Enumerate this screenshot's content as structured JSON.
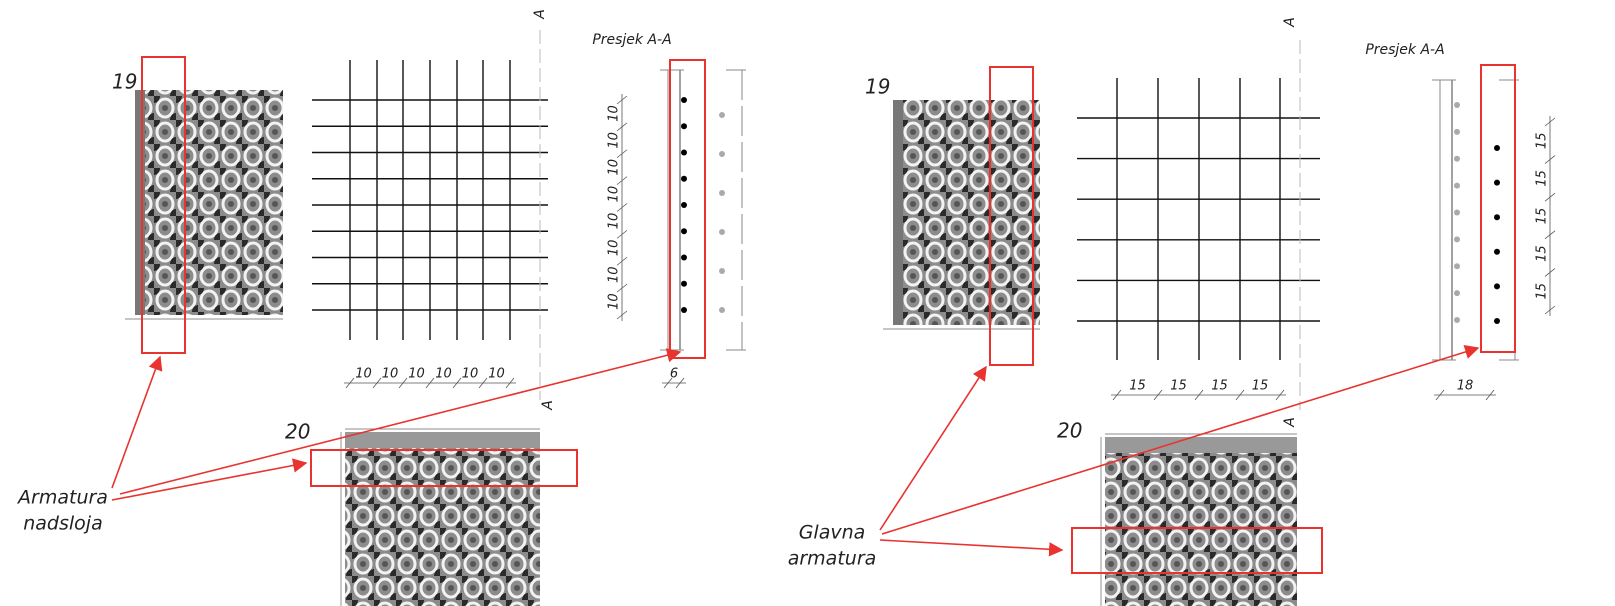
{
  "left": {
    "scan_top_label": "19",
    "scan_bottom_label": "20",
    "section_title": "Presjek A-A",
    "section_marks": [
      "A",
      "A"
    ],
    "grid_dims": [
      10,
      10,
      10,
      10,
      10,
      10
    ],
    "section_dims": [
      10,
      10,
      10,
      10,
      10,
      10,
      10,
      10
    ],
    "cover_dim": 6,
    "callout": [
      "Armatura",
      "nadsloja"
    ]
  },
  "right": {
    "scan_top_label": "19",
    "scan_bottom_label": "20",
    "section_title": "Presjek A-A",
    "section_marks": [
      "A",
      "A"
    ],
    "grid_dims": [
      15,
      15,
      15,
      15
    ],
    "section_dims": [
      15,
      15,
      15,
      15,
      15
    ],
    "cover_dim": 18,
    "callout": [
      "Glavna",
      "armatura"
    ]
  }
}
